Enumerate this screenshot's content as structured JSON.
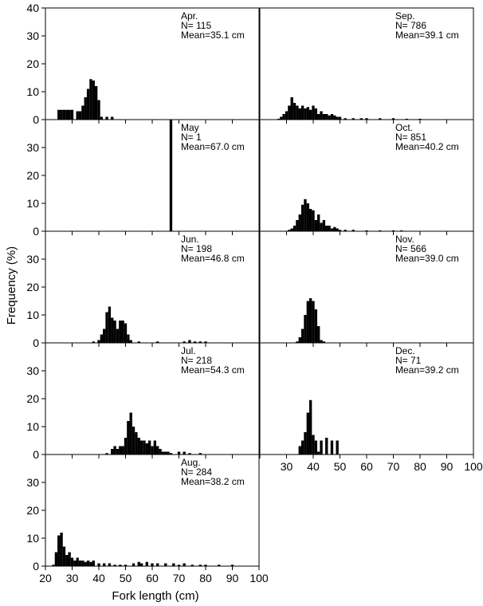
{
  "chart_data": {
    "type": "bar",
    "xlabel": "Fork length (cm)",
    "ylabel": "Frequency (%)",
    "xlim": [
      20,
      100
    ],
    "ylim": [
      0,
      40
    ],
    "x_ticks": [
      "20",
      "30",
      "40",
      "50",
      "60",
      "70",
      "80",
      "90",
      "100"
    ],
    "y_ticks": [
      "0",
      "10",
      "20",
      "30",
      "40"
    ],
    "panels": [
      {
        "month": "Apr.",
        "n": "N= 115",
        "mean": "Mean=35.1 cm",
        "bars": [
          [
            25,
            3.5
          ],
          [
            26,
            3.5
          ],
          [
            27,
            3.5
          ],
          [
            28,
            3.5
          ],
          [
            29,
            3.5
          ],
          [
            30,
            3.5
          ],
          [
            32,
            3
          ],
          [
            33,
            3
          ],
          [
            34,
            5
          ],
          [
            35,
            8
          ],
          [
            36,
            11
          ],
          [
            37,
            14.5
          ],
          [
            38,
            14
          ],
          [
            39,
            12
          ],
          [
            40,
            7
          ],
          [
            41,
            1
          ],
          [
            43,
            1
          ],
          [
            45,
            1
          ]
        ]
      },
      {
        "month": "Sep.",
        "n": "N= 786",
        "mean": "Mean=39.1 cm",
        "bars": [
          [
            27,
            0.3
          ],
          [
            28,
            1
          ],
          [
            29,
            2
          ],
          [
            30,
            3
          ],
          [
            31,
            5
          ],
          [
            32,
            8
          ],
          [
            33,
            6
          ],
          [
            34,
            5
          ],
          [
            35,
            4
          ],
          [
            36,
            5
          ],
          [
            37,
            4
          ],
          [
            38,
            4.5
          ],
          [
            39,
            3.5
          ],
          [
            40,
            5
          ],
          [
            41,
            4
          ],
          [
            42,
            2
          ],
          [
            43,
            3
          ],
          [
            44,
            2
          ],
          [
            45,
            2
          ],
          [
            46,
            1.5
          ],
          [
            47,
            2
          ],
          [
            48,
            1.5
          ],
          [
            49,
            1
          ],
          [
            50,
            1
          ],
          [
            52,
            0.5
          ],
          [
            55,
            0.5
          ],
          [
            58,
            0.5
          ],
          [
            60,
            0.5
          ],
          [
            65,
            0.5
          ],
          [
            70,
            0.5
          ],
          [
            75,
            0.3
          ],
          [
            80,
            0.3
          ]
        ]
      },
      {
        "month": "May",
        "n": "N= 1",
        "mean": "Mean=67.0 cm",
        "bars": [
          [
            67,
            100
          ]
        ]
      },
      {
        "month": "Oct.",
        "n": "N= 851",
        "mean": "Mean=40.2 cm",
        "bars": [
          [
            31,
            0.5
          ],
          [
            32,
            1
          ],
          [
            33,
            2
          ],
          [
            34,
            4
          ],
          [
            35,
            6
          ],
          [
            36,
            9.5
          ],
          [
            37,
            11.5
          ],
          [
            38,
            10
          ],
          [
            39,
            8
          ],
          [
            40,
            7.5
          ],
          [
            41,
            4
          ],
          [
            42,
            6
          ],
          [
            43,
            3
          ],
          [
            44,
            4
          ],
          [
            45,
            2
          ],
          [
            46,
            2
          ],
          [
            47,
            1
          ],
          [
            48,
            1.5
          ],
          [
            49,
            1
          ],
          [
            50,
            0.5
          ],
          [
            52,
            0.5
          ],
          [
            55,
            0.5
          ],
          [
            60,
            0.3
          ],
          [
            65,
            0.3
          ],
          [
            70,
            0.3
          ],
          [
            73,
            0.3
          ]
        ]
      },
      {
        "month": "Jun.",
        "n": "N= 198",
        "mean": "Mean=46.8 cm",
        "bars": [
          [
            38,
            0.5
          ],
          [
            40,
            1
          ],
          [
            41,
            3
          ],
          [
            42,
            5
          ],
          [
            43,
            11
          ],
          [
            44,
            13
          ],
          [
            45,
            9
          ],
          [
            46,
            8
          ],
          [
            47,
            5
          ],
          [
            48,
            8
          ],
          [
            49,
            8
          ],
          [
            50,
            7
          ],
          [
            51,
            3
          ],
          [
            52,
            1
          ],
          [
            55,
            0.5
          ],
          [
            62,
            0.5
          ],
          [
            72,
            0.5
          ],
          [
            74,
            1
          ],
          [
            76,
            0.5
          ],
          [
            78,
            0.5
          ],
          [
            80,
            0.5
          ]
        ]
      },
      {
        "month": "Nov.",
        "n": "N= 566",
        "mean": "Mean=39.0 cm",
        "bars": [
          [
            34,
            0.5
          ],
          [
            35,
            2
          ],
          [
            36,
            5
          ],
          [
            37,
            10
          ],
          [
            38,
            15
          ],
          [
            39,
            16
          ],
          [
            40,
            15
          ],
          [
            41,
            12
          ],
          [
            42,
            6
          ],
          [
            43,
            1
          ],
          [
            44,
            0.5
          ]
        ]
      },
      {
        "month": "Jul.",
        "n": "N= 218",
        "mean": "Mean=54.3 cm",
        "bars": [
          [
            43,
            0.5
          ],
          [
            45,
            2
          ],
          [
            46,
            3
          ],
          [
            47,
            2
          ],
          [
            48,
            3
          ],
          [
            49,
            3
          ],
          [
            50,
            6
          ],
          [
            51,
            12
          ],
          [
            52,
            15
          ],
          [
            53,
            10
          ],
          [
            54,
            8
          ],
          [
            55,
            6
          ],
          [
            56,
            5
          ],
          [
            57,
            5
          ],
          [
            58,
            4
          ],
          [
            59,
            5
          ],
          [
            60,
            3
          ],
          [
            61,
            5
          ],
          [
            62,
            3
          ],
          [
            63,
            2
          ],
          [
            64,
            1
          ],
          [
            65,
            1
          ],
          [
            66,
            1
          ],
          [
            67,
            0.5
          ],
          [
            70,
            1
          ],
          [
            72,
            1
          ],
          [
            74,
            0.5
          ],
          [
            78,
            0.5
          ]
        ]
      },
      {
        "month": "Dec.",
        "n": "N= 71",
        "mean": "Mean=39.2 cm",
        "bars": [
          [
            35,
            3
          ],
          [
            36,
            5
          ],
          [
            37,
            8
          ],
          [
            38,
            15
          ],
          [
            39,
            19.5
          ],
          [
            40,
            7
          ],
          [
            41,
            5
          ],
          [
            42,
            1
          ],
          [
            43,
            5
          ],
          [
            45,
            6
          ],
          [
            47,
            5
          ],
          [
            49,
            5
          ]
        ]
      },
      {
        "month": "Aug.",
        "n": "N= 284",
        "mean": "Mean=38.2 cm",
        "bars": [
          [
            23,
            0.5
          ],
          [
            24,
            5
          ],
          [
            25,
            11
          ],
          [
            26,
            12
          ],
          [
            27,
            7
          ],
          [
            28,
            4
          ],
          [
            29,
            5
          ],
          [
            30,
            3
          ],
          [
            31,
            2
          ],
          [
            32,
            3
          ],
          [
            33,
            2
          ],
          [
            34,
            2
          ],
          [
            35,
            1.5
          ],
          [
            36,
            2
          ],
          [
            37,
            1.5
          ],
          [
            38,
            2
          ],
          [
            40,
            1
          ],
          [
            42,
            1
          ],
          [
            44,
            1
          ],
          [
            46,
            0.5
          ],
          [
            48,
            0.5
          ],
          [
            50,
            0.5
          ],
          [
            53,
            1
          ],
          [
            55,
            1.5
          ],
          [
            56,
            1
          ],
          [
            58,
            1.5
          ],
          [
            60,
            1
          ],
          [
            62,
            1
          ],
          [
            65,
            1
          ],
          [
            68,
            1
          ],
          [
            70,
            0.5
          ],
          [
            72,
            1
          ],
          [
            75,
            0.5
          ],
          [
            78,
            0.5
          ],
          [
            80,
            0.5
          ],
          [
            85,
            0.5
          ],
          [
            90,
            0.5
          ]
        ]
      }
    ]
  }
}
